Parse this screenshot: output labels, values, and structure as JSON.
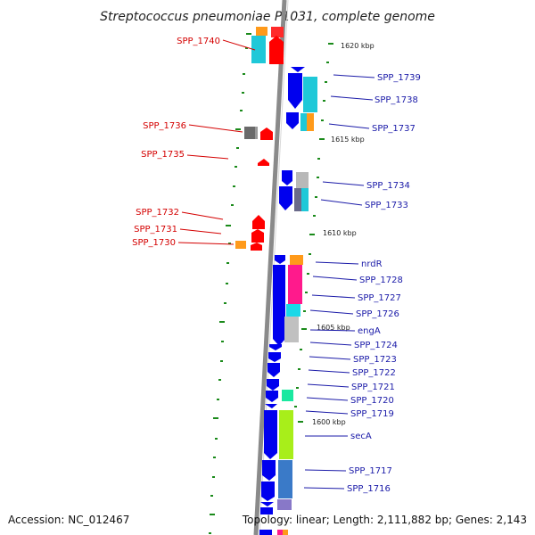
{
  "title": "Streptococcus pneumoniae P1031, complete genome",
  "footer": {
    "accession": "Accession: NC_012467",
    "summary": "Topology: linear; Length: 2,111,882 bp; Genes: 2,143"
  },
  "colors": {
    "reverse_gene": "#ff0000",
    "forward_gene": "#0000ee",
    "axis": "#888888",
    "tick": "#1a8a1a",
    "label_reverse": "#d40000",
    "label_forward": "#1a1aa8"
  },
  "kbp_markers": [
    "1620 kbp",
    "1615 kbp",
    "1610 kbp",
    "1605 kbp",
    "1600 kbp"
  ],
  "reverse_labels": [
    "SPP_1740",
    "SPP_1736",
    "SPP_1735",
    "SPP_1732",
    "SPP_1731",
    "SPP_1730"
  ],
  "forward_labels": [
    "SPP_1739",
    "SPP_1738",
    "SPP_1737",
    "SPP_1734",
    "SPP_1733",
    "nrdR",
    "SPP_1728",
    "SPP_1727",
    "SPP_1726",
    "engA",
    "SPP_1724",
    "SPP_1723",
    "SPP_1722",
    "SPP_1721",
    "SPP_1720",
    "SPP_1719",
    "secA",
    "SPP_1717",
    "SPP_1716"
  ]
}
